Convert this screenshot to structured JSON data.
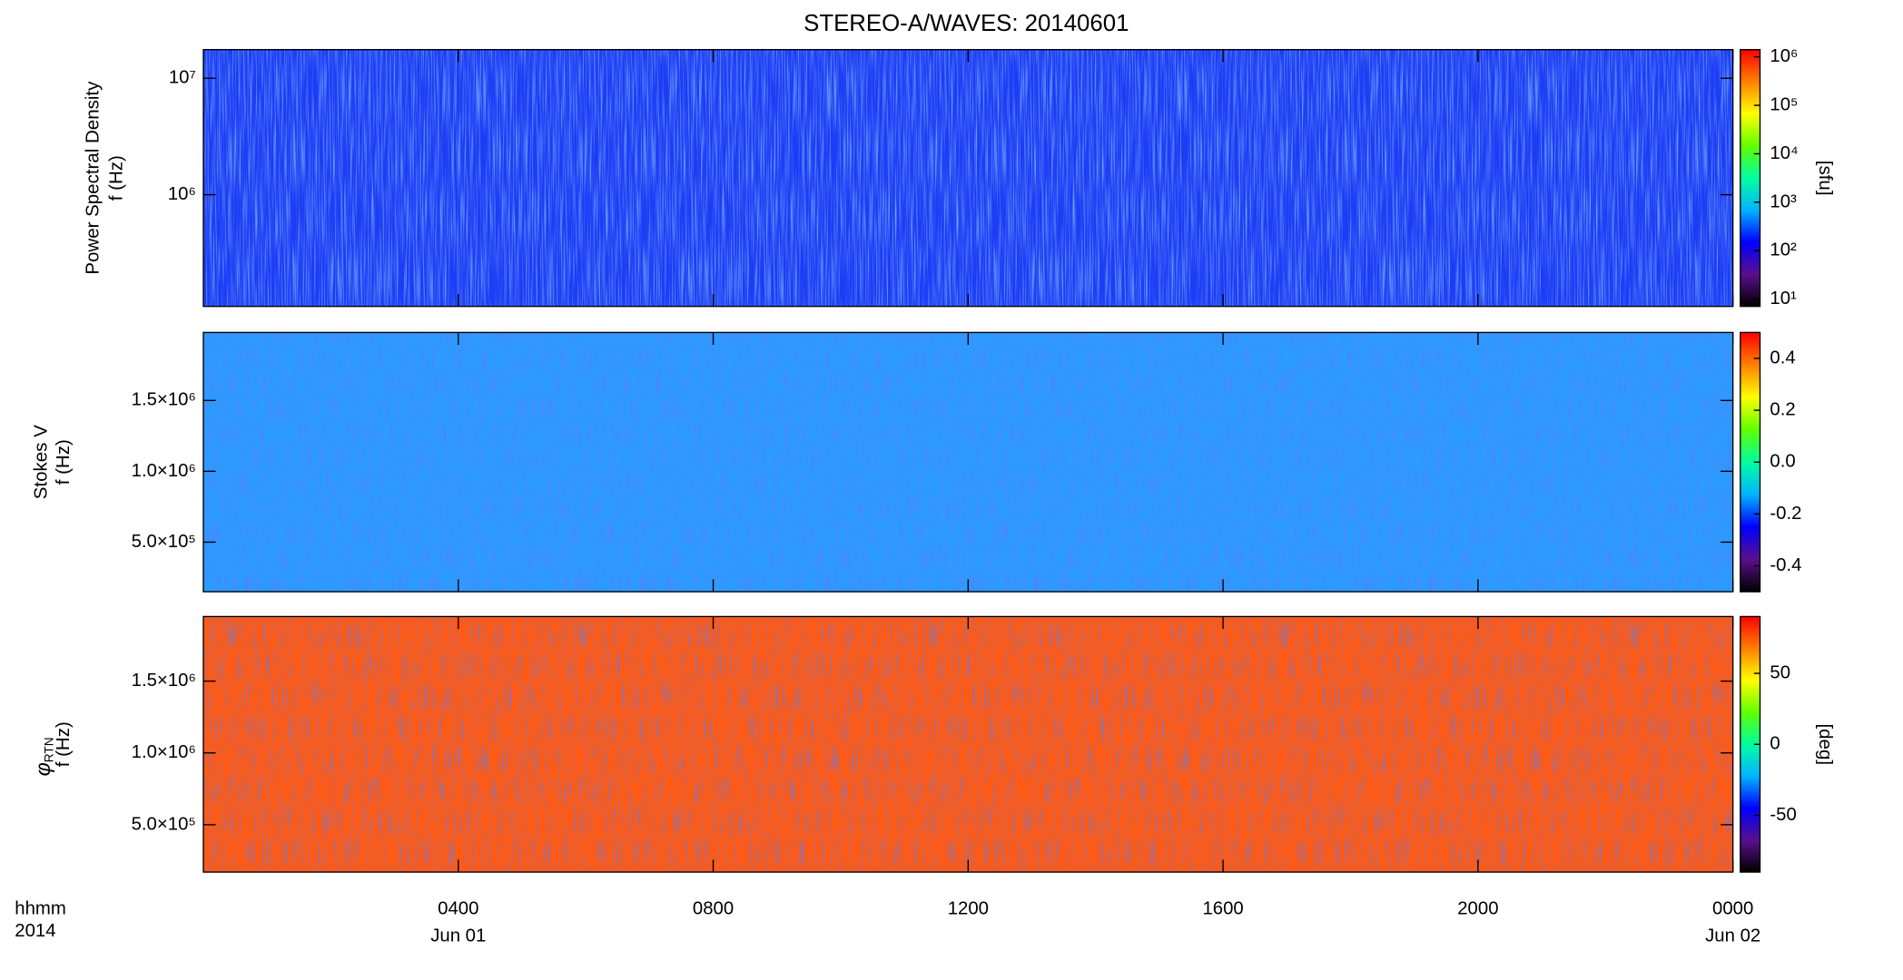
{
  "title": "STEREO-A/WAVES: 20140601",
  "x_axis": {
    "xlim": [
      0,
      24
    ],
    "xticks": [
      {
        "value": 4,
        "label": "0400"
      },
      {
        "value": 8,
        "label": "0800"
      },
      {
        "value": 12,
        "label": "1200"
      },
      {
        "value": 16,
        "label": "1600"
      },
      {
        "value": 20,
        "label": "2000"
      },
      {
        "value": 24,
        "label": "0000"
      }
    ],
    "date_labels": [
      {
        "value": 4,
        "label": "Jun 01"
      },
      {
        "value": 24,
        "label": "Jun 02"
      }
    ],
    "unit_label": "hhmm",
    "year_label": "2014"
  },
  "chart_data": [
    {
      "type": "heatmap",
      "ylabel": {
        "name": "Power Spectral Density",
        "unit": "f (Hz)"
      },
      "ylim": [
        110000,
        17600000
      ],
      "ylog": true,
      "yticks": [
        {
          "value": 1000000,
          "label": "10⁶"
        },
        {
          "value": 10000000,
          "label": "10⁷"
        }
      ],
      "clim": [
        7.08,
        1410000
      ],
      "clog": true,
      "cticks": [
        {
          "value": 10,
          "label": "10¹"
        },
        {
          "value": 100,
          "label": "10²"
        },
        {
          "value": 1000,
          "label": "10³"
        },
        {
          "value": 10000,
          "label": "10⁴"
        },
        {
          "value": 100000,
          "label": "10⁵"
        },
        {
          "value": 1000000,
          "label": "10⁶"
        }
      ],
      "clabel": "[sfu]",
      "colormap": [
        "#000000",
        "#5a0f8c",
        "#0000ff",
        "#00b4ff",
        "#00ffa0",
        "#60ff00",
        "#ffff00",
        "#ff8000",
        "#ff0000"
      ]
    },
    {
      "type": "heatmap",
      "ylabel": {
        "name": "Stokes V",
        "unit": "f (Hz)"
      },
      "ylim": [
        150000,
        1980000
      ],
      "ylog": false,
      "yticks": [
        {
          "value": 500000,
          "label": "5.0×10⁵"
        },
        {
          "value": 1000000,
          "label": "1.0×10⁶"
        },
        {
          "value": 1500000,
          "label": "1.5×10⁶"
        }
      ],
      "clim": [
        -0.5,
        0.5
      ],
      "clog": false,
      "cticks": [
        -0.4,
        -0.2,
        {
          "value": 0,
          "label": "0.0"
        },
        0.2,
        0.4
      ],
      "colormap": [
        "#000000",
        "#5a0f8c",
        "#0000ff",
        "#00b4ff",
        "#00ffa0",
        "#60ff00",
        "#ffff00",
        "#ff8000",
        "#ff0000"
      ]
    },
    {
      "type": "heatmap",
      "ylabel": {
        "symbol": "φ",
        "subscript": "RTN",
        "unit": "f (Hz)"
      },
      "ylim": [
        170000,
        1950000
      ],
      "ylog": false,
      "yticks": [
        {
          "value": 500000,
          "label": "5.0×10⁵"
        },
        {
          "value": 1000000,
          "label": "1.0×10⁶"
        },
        {
          "value": 1500000,
          "label": "1.5×10⁶"
        }
      ],
      "clim": [
        -90,
        90
      ],
      "clog": false,
      "cticks": [
        -50,
        0,
        50
      ],
      "clabel": "[deg]",
      "colormap": [
        "#000000",
        "#5a0f8c",
        "#0000ff",
        "#00b4ff",
        "#00ffa0",
        "#60ff00",
        "#ffff00",
        "#ff8000",
        "#ff0000"
      ]
    }
  ]
}
